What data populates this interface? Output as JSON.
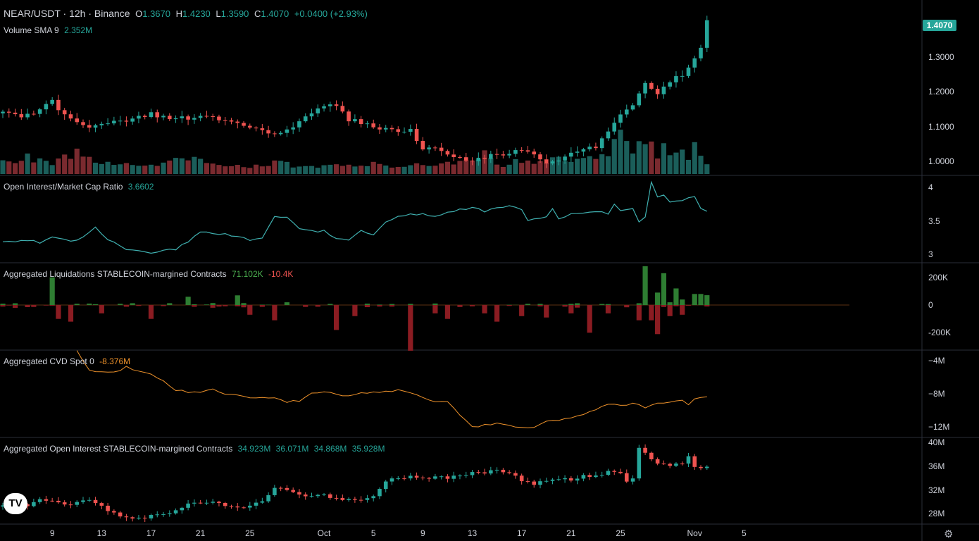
{
  "header": {
    "symbol": "NEAR/USDT · 12h · Binance",
    "open_label": "O",
    "open": "1.3670",
    "high_label": "H",
    "high": "1.4230",
    "low_label": "L",
    "low": "1.3590",
    "close_label": "C",
    "close": "1.4070",
    "change": "+0.0400 (+2.93%)"
  },
  "last_price_tag": "1.4070",
  "colors": {
    "up": "#26a69a",
    "down": "#ef5350",
    "vol_up": "#1b5e5a",
    "vol_down": "#7a2a2f",
    "oi_ratio_line": "#3fb0b0",
    "cvd_line": "#f0932b",
    "liq_up": "#2e7d32",
    "liq_down": "#8b1c22",
    "background": "#000000",
    "pane_border": "#2a2e39"
  },
  "icons": {
    "logo": "tradingview-logo-icon",
    "settings": "gear-icon"
  },
  "logo_text": "TV",
  "settings_glyph": "⚙",
  "chart_data": [
    {
      "type": "candlestick",
      "title": "NEAR/USDT · 12h · Binance",
      "y_ticks": [
        "1.3000",
        "1.2000",
        "1.1000",
        "1.0000"
      ],
      "y_tick_values": [
        1.3,
        1.2,
        1.1,
        1.0
      ],
      "ylim": [
        0.965,
        1.445
      ],
      "x_ticks": [
        "9",
        "13",
        "17",
        "21",
        "25",
        "Oct",
        "5",
        "9",
        "13",
        "17",
        "21",
        "25",
        "Nov",
        "5"
      ],
      "x_tick_index": [
        8,
        16,
        24,
        32,
        40,
        52,
        60,
        68,
        76,
        84,
        92,
        100,
        112,
        120
      ],
      "bars": 115,
      "anchors_close": [
        [
          0,
          1.14
        ],
        [
          4,
          1.13
        ],
        [
          8,
          1.17
        ],
        [
          10,
          1.13
        ],
        [
          12,
          1.11
        ],
        [
          14,
          1.09
        ],
        [
          16,
          1.11
        ],
        [
          20,
          1.12
        ],
        [
          24,
          1.135
        ],
        [
          28,
          1.12
        ],
        [
          32,
          1.13
        ],
        [
          36,
          1.12
        ],
        [
          40,
          1.1
        ],
        [
          44,
          1.08
        ],
        [
          48,
          1.11
        ],
        [
          52,
          1.16
        ],
        [
          54,
          1.165
        ],
        [
          56,
          1.12
        ],
        [
          60,
          1.1
        ],
        [
          64,
          1.09
        ],
        [
          66,
          1.09
        ],
        [
          68,
          1.04
        ],
        [
          70,
          1.04
        ],
        [
          72,
          1.02
        ],
        [
          76,
          1.0
        ],
        [
          80,
          1.02
        ],
        [
          84,
          1.03
        ],
        [
          86,
          1.02
        ],
        [
          88,
          0.99
        ],
        [
          90,
          1.0
        ],
        [
          92,
          1.02
        ],
        [
          96,
          1.04
        ],
        [
          100,
          1.14
        ],
        [
          102,
          1.16
        ],
        [
          104,
          1.22
        ],
        [
          106,
          1.2
        ],
        [
          108,
          1.23
        ],
        [
          110,
          1.25
        ],
        [
          112,
          1.29
        ],
        [
          113,
          1.33
        ],
        [
          114,
          1.407
        ]
      ]
    },
    {
      "type": "bar",
      "title": "Volume SMA 9",
      "value": "2.352M",
      "note": "relative volume heights per bar, colored by candle direction",
      "anchors": [
        [
          0,
          0.3
        ],
        [
          4,
          0.45
        ],
        [
          8,
          0.25
        ],
        [
          10,
          0.4
        ],
        [
          12,
          0.55
        ],
        [
          16,
          0.25
        ],
        [
          20,
          0.25
        ],
        [
          24,
          0.2
        ],
        [
          28,
          0.4
        ],
        [
          32,
          0.35
        ],
        [
          36,
          0.25
        ],
        [
          40,
          0.2
        ],
        [
          44,
          0.3
        ],
        [
          48,
          0.2
        ],
        [
          52,
          0.2
        ],
        [
          56,
          0.25
        ],
        [
          60,
          0.25
        ],
        [
          64,
          0.15
        ],
        [
          68,
          0.25
        ],
        [
          72,
          0.25
        ],
        [
          76,
          0.35
        ],
        [
          78,
          0.55
        ],
        [
          80,
          0.2
        ],
        [
          84,
          0.35
        ],
        [
          88,
          0.3
        ],
        [
          90,
          0.4
        ],
        [
          92,
          0.3
        ],
        [
          96,
          0.4
        ],
        [
          98,
          0.6
        ],
        [
          100,
          0.95
        ],
        [
          101,
          0.75
        ],
        [
          102,
          0.65
        ],
        [
          104,
          1.0
        ],
        [
          105,
          0.7
        ],
        [
          106,
          0.5
        ],
        [
          107,
          0.85
        ],
        [
          108,
          0.55
        ],
        [
          110,
          0.55
        ],
        [
          111,
          0.45
        ],
        [
          112,
          0.65
        ],
        [
          113,
          0.5
        ],
        [
          114,
          0.25
        ]
      ]
    },
    {
      "type": "line",
      "title": "Open Interest/Market Cap Ratio",
      "value": "3.6602",
      "y_ticks": [
        "4",
        "3.5",
        "3"
      ],
      "y_tick_values": [
        4,
        3.5,
        3
      ],
      "ylim": [
        2.93,
        4.12
      ],
      "points": [
        [
          0,
          3.18
        ],
        [
          4,
          3.22
        ],
        [
          6,
          3.18
        ],
        [
          8,
          3.27
        ],
        [
          10,
          3.22
        ],
        [
          12,
          3.2
        ],
        [
          15,
          3.4
        ],
        [
          17,
          3.22
        ],
        [
          20,
          3.08
        ],
        [
          24,
          3.03
        ],
        [
          26,
          3.07
        ],
        [
          28,
          3.07
        ],
        [
          30,
          3.2
        ],
        [
          32,
          3.35
        ],
        [
          34,
          3.32
        ],
        [
          36,
          3.3
        ],
        [
          40,
          3.22
        ],
        [
          42,
          3.25
        ],
        [
          44,
          3.57
        ],
        [
          46,
          3.55
        ],
        [
          48,
          3.4
        ],
        [
          50,
          3.35
        ],
        [
          52,
          3.35
        ],
        [
          54,
          3.23
        ],
        [
          56,
          3.22
        ],
        [
          58,
          3.35
        ],
        [
          60,
          3.3
        ],
        [
          62,
          3.5
        ],
        [
          64,
          3.57
        ],
        [
          66,
          3.6
        ],
        [
          68,
          3.6
        ],
        [
          70,
          3.57
        ],
        [
          72,
          3.63
        ],
        [
          74,
          3.67
        ],
        [
          76,
          3.7
        ],
        [
          78,
          3.65
        ],
        [
          80,
          3.7
        ],
        [
          82,
          3.72
        ],
        [
          84,
          3.68
        ],
        [
          85,
          3.5
        ],
        [
          86,
          3.52
        ],
        [
          88,
          3.57
        ],
        [
          89,
          3.68
        ],
        [
          90,
          3.52
        ],
        [
          92,
          3.6
        ],
        [
          94,
          3.62
        ],
        [
          96,
          3.65
        ],
        [
          98,
          3.6
        ],
        [
          99,
          3.75
        ],
        [
          100,
          3.65
        ],
        [
          102,
          3.7
        ],
        [
          103,
          3.5
        ],
        [
          104,
          3.55
        ],
        [
          105,
          4.07
        ],
        [
          106,
          3.85
        ],
        [
          107,
          3.88
        ],
        [
          108,
          3.78
        ],
        [
          110,
          3.8
        ],
        [
          112,
          3.88
        ],
        [
          113,
          3.68
        ],
        [
          114,
          3.66
        ]
      ]
    },
    {
      "type": "bar",
      "title": "Aggregated Liquidations STABLECOIN-margined Contracts",
      "value_long": "71.102K",
      "value_short": "-10.4K",
      "y_ticks": [
        "200K",
        "0",
        "-200K"
      ],
      "y_tick_values": [
        200,
        0,
        -200
      ],
      "ylim": [
        -300,
        280
      ],
      "long": [
        [
          0,
          10
        ],
        [
          8,
          200
        ],
        [
          30,
          60
        ],
        [
          38,
          70
        ],
        [
          46,
          20
        ],
        [
          104,
          280
        ],
        [
          106,
          90
        ],
        [
          107,
          230
        ],
        [
          108,
          20
        ],
        [
          109,
          120
        ],
        [
          110,
          40
        ],
        [
          112,
          80
        ],
        [
          113,
          80
        ],
        [
          114,
          71.1
        ]
      ],
      "short": [
        [
          2,
          -20
        ],
        [
          9,
          -100
        ],
        [
          11,
          -120
        ],
        [
          16,
          -60
        ],
        [
          24,
          -100
        ],
        [
          40,
          -70
        ],
        [
          44,
          -110
        ],
        [
          54,
          -180
        ],
        [
          57,
          -80
        ],
        [
          66,
          -330
        ],
        [
          70,
          -60
        ],
        [
          72,
          -100
        ],
        [
          78,
          -60
        ],
        [
          80,
          -120
        ],
        [
          84,
          -80
        ],
        [
          88,
          -90
        ],
        [
          92,
          -60
        ],
        [
          95,
          -200
        ],
        [
          98,
          -60
        ],
        [
          103,
          -110
        ],
        [
          105,
          -110
        ],
        [
          106,
          -210
        ],
        [
          108,
          -80
        ],
        [
          110,
          -70
        ],
        [
          114,
          -10.4
        ]
      ]
    },
    {
      "type": "line",
      "title": "Aggregated CVD Spot 0",
      "value": "-8.376M",
      "y_ticks": [
        "−4M",
        "−8M",
        "−12M"
      ],
      "y_tick_values": [
        -4,
        -8,
        -12
      ],
      "ylim": [
        -13.0,
        -3.0
      ],
      "points": [
        [
          12,
          -2.8
        ],
        [
          14,
          -5.2
        ],
        [
          16,
          -5.4
        ],
        [
          18,
          -5.4
        ],
        [
          20,
          -4.8
        ],
        [
          22,
          -5.3
        ],
        [
          24,
          -5.7
        ],
        [
          26,
          -6.5
        ],
        [
          28,
          -7.5
        ],
        [
          30,
          -7.8
        ],
        [
          32,
          -7.8
        ],
        [
          34,
          -7.5
        ],
        [
          36,
          -8.0
        ],
        [
          40,
          -8.5
        ],
        [
          44,
          -8.6
        ],
        [
          46,
          -9.0
        ],
        [
          48,
          -8.8
        ],
        [
          50,
          -8.0
        ],
        [
          52,
          -7.8
        ],
        [
          54,
          -8.0
        ],
        [
          56,
          -8.3
        ],
        [
          58,
          -7.9
        ],
        [
          62,
          -7.7
        ],
        [
          64,
          -7.6
        ],
        [
          66,
          -7.9
        ],
        [
          68,
          -8.5
        ],
        [
          70,
          -8.9
        ],
        [
          72,
          -9.0
        ],
        [
          74,
          -10.5
        ],
        [
          76,
          -12.0
        ],
        [
          78,
          -11.8
        ],
        [
          80,
          -11.6
        ],
        [
          82,
          -11.9
        ],
        [
          84,
          -12.0
        ],
        [
          86,
          -12.0
        ],
        [
          88,
          -11.4
        ],
        [
          90,
          -11.2
        ],
        [
          92,
          -10.8
        ],
        [
          94,
          -10.4
        ],
        [
          96,
          -10.0
        ],
        [
          98,
          -9.2
        ],
        [
          100,
          -9.5
        ],
        [
          102,
          -9.2
        ],
        [
          104,
          -9.6
        ],
        [
          106,
          -9.2
        ],
        [
          108,
          -9.0
        ],
        [
          110,
          -8.8
        ],
        [
          111,
          -9.2
        ],
        [
          112,
          -8.6
        ],
        [
          113,
          -8.5
        ],
        [
          114,
          -8.376
        ]
      ]
    },
    {
      "type": "candlestick",
      "title": "Aggregated Open Interest STABLECOIN-margined Contracts",
      "values": [
        "34.923M",
        "36.071M",
        "34.868M",
        "35.928M"
      ],
      "y_ticks": [
        "40M",
        "36M",
        "32M",
        "28M"
      ],
      "y_tick_values": [
        40,
        36,
        32,
        28
      ],
      "ylim": [
        26.5,
        40.5
      ],
      "anchors_close": [
        [
          0,
          29.2
        ],
        [
          4,
          29.5
        ],
        [
          6,
          30.3
        ],
        [
          8,
          30.2
        ],
        [
          10,
          29.5
        ],
        [
          12,
          30.0
        ],
        [
          14,
          30.3
        ],
        [
          16,
          29.3
        ],
        [
          18,
          28.0
        ],
        [
          20,
          27.5
        ],
        [
          22,
          27.3
        ],
        [
          24,
          27.6
        ],
        [
          26,
          27.8
        ],
        [
          28,
          28.5
        ],
        [
          30,
          29.5
        ],
        [
          32,
          30.0
        ],
        [
          34,
          29.8
        ],
        [
          36,
          29.5
        ],
        [
          38,
          29.2
        ],
        [
          40,
          29.3
        ],
        [
          42,
          30.0
        ],
        [
          44,
          32.5
        ],
        [
          46,
          32.0
        ],
        [
          48,
          31.0
        ],
        [
          50,
          30.8
        ],
        [
          52,
          31.3
        ],
        [
          54,
          30.5
        ],
        [
          56,
          30.3
        ],
        [
          58,
          30.5
        ],
        [
          60,
          31.0
        ],
        [
          62,
          33.5
        ],
        [
          64,
          34.0
        ],
        [
          66,
          34.2
        ],
        [
          68,
          34.0
        ],
        [
          70,
          34.3
        ],
        [
          72,
          34.0
        ],
        [
          74,
          34.5
        ],
        [
          76,
          34.8
        ],
        [
          78,
          35.0
        ],
        [
          80,
          35.3
        ],
        [
          82,
          35.0
        ],
        [
          84,
          33.5
        ],
        [
          86,
          33.0
        ],
        [
          88,
          33.5
        ],
        [
          90,
          34.0
        ],
        [
          92,
          33.8
        ],
        [
          94,
          34.3
        ],
        [
          96,
          34.5
        ],
        [
          98,
          35.0
        ],
        [
          100,
          34.8
        ],
        [
          101,
          33.5
        ],
        [
          102,
          33.8
        ],
        [
          103,
          39.0
        ],
        [
          104,
          38.5
        ],
        [
          105,
          37.0
        ],
        [
          106,
          36.5
        ],
        [
          108,
          36.0
        ],
        [
          110,
          36.5
        ],
        [
          111,
          37.5
        ],
        [
          112,
          36.0
        ],
        [
          113,
          35.5
        ],
        [
          114,
          35.928
        ]
      ]
    }
  ]
}
